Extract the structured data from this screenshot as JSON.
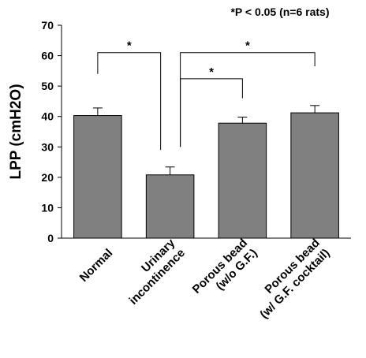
{
  "chart_data": {
    "type": "bar",
    "note": "*P < 0.05 (n=6 rats)",
    "y_label": "LPP (cmH2O)",
    "categories": [
      "Normal",
      "Urinary\nincontinence",
      "Porous bead\n(w/o G.F.)",
      "Porous bead\n(w/ G.F. cocktail)"
    ],
    "values": [
      40.3,
      20.8,
      37.8,
      41.2
    ],
    "errors": [
      2.5,
      2.6,
      2.0,
      2.4
    ],
    "color": "#808080",
    "ylim": [
      0,
      70
    ],
    "yticks": [
      0,
      10,
      20,
      30,
      40,
      50,
      60,
      70
    ],
    "brackets": [
      {
        "from": 0,
        "to": 1,
        "y": 61,
        "ends": [
          54,
          29
        ],
        "label": "*"
      },
      {
        "from": 1,
        "to": 3,
        "y": 61,
        "ends": [
          30,
          56.5
        ],
        "label": "*"
      },
      {
        "from": 1,
        "to": 2,
        "y": 52.4,
        "ends": [
          30,
          46
        ],
        "label": "*"
      }
    ]
  }
}
